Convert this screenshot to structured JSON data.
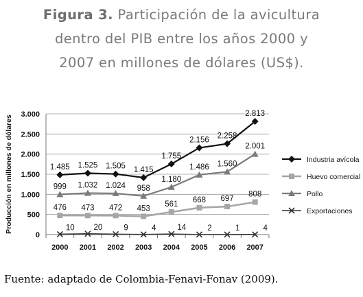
{
  "caption": {
    "label": "Figura 3.",
    "line1": "Participación de la avicultura",
    "line2": "dentro del PIB entre los años 2000 y",
    "line3": "2007 en millones de dólares (US$)."
  },
  "source": "Fuente: adaptado de Colombia-Fenavi-Fonav (2009).",
  "chart_data": {
    "type": "line",
    "title": "",
    "xlabel": "",
    "ylabel": "Producción en millones de dólares",
    "categories": [
      "2000",
      "2001",
      "2002",
      "2003",
      "2004",
      "2005",
      "2006",
      "2007"
    ],
    "ylim": [
      0,
      3000
    ],
    "yticks": [
      0,
      500,
      1000,
      1500,
      2000,
      2500,
      3000
    ],
    "ytick_labels": [
      "0",
      "500",
      "1.000",
      "1.500",
      "2.000",
      "2.500",
      "3.000"
    ],
    "grid": true,
    "legend": "right",
    "series": [
      {
        "name": "Industria avícola",
        "marker": "diamond",
        "color": "#111111",
        "values": [
          1485,
          1525,
          1505,
          1415,
          1755,
          2156,
          2258,
          2813
        ],
        "labels": [
          "1.485",
          "1.525",
          "1.505",
          "1.415",
          "1.755",
          "2.156",
          "2.258",
          "2.813"
        ]
      },
      {
        "name": "Huevo comercial",
        "marker": "square",
        "color": "#a6a6a6",
        "values": [
          476,
          473,
          472,
          453,
          561,
          668,
          697,
          808
        ],
        "labels": [
          "476",
          "473",
          "472",
          "453",
          "561",
          "668",
          "697",
          "808"
        ]
      },
      {
        "name": "Pollo",
        "marker": "triangle",
        "color": "#7a7a7a",
        "values": [
          999,
          1032,
          1024,
          958,
          1180,
          1486,
          1560,
          2001
        ],
        "labels": [
          "999",
          "1.032",
          "1.024",
          "958",
          "1.180",
          "1.486",
          "1.560",
          "2.001"
        ]
      },
      {
        "name": "Exportaciones",
        "marker": "x",
        "color": "#333333",
        "values": [
          10,
          20,
          9,
          4,
          14,
          2,
          1,
          4
        ],
        "labels": [
          "10",
          "20",
          "9",
          "4",
          "14",
          "2",
          "1",
          "4"
        ]
      }
    ]
  }
}
